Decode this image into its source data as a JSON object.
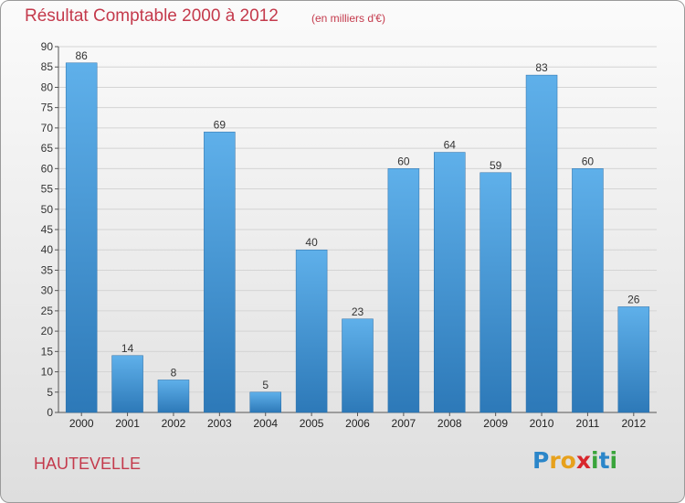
{
  "header": {
    "title": "Résultat Comptable 2000 à 2012",
    "subtitle": "(en milliers d'€)"
  },
  "footer": {
    "commune": "HAUTEVELLE",
    "logo": [
      "P",
      "r",
      "o",
      "x",
      "i",
      "t",
      "i"
    ]
  },
  "colors": {
    "title": "#c43a4c",
    "bar_light": "#5fb0ea",
    "bar_dark": "#2d79b8",
    "logo_letters": [
      "#2b86c9",
      "#e7a11c",
      "#e7a11c",
      "#d8262c",
      "#3aa43b",
      "#2b86c9",
      "#3aa43b"
    ]
  },
  "chart_data": {
    "type": "bar",
    "title": "Résultat Comptable 2000 à 2012",
    "categories": [
      "2000",
      "2001",
      "2002",
      "2003",
      "2004",
      "2005",
      "2006",
      "2007",
      "2008",
      "2009",
      "2010",
      "2011",
      "2012"
    ],
    "values": [
      86,
      14,
      8,
      69,
      5,
      40,
      23,
      60,
      64,
      59,
      83,
      60,
      26
    ],
    "ylim": [
      0,
      90
    ],
    "yticks": [
      0,
      5,
      10,
      15,
      20,
      25,
      30,
      35,
      40,
      45,
      50,
      55,
      60,
      65,
      70,
      75,
      80,
      85,
      90
    ],
    "grid": true
  }
}
